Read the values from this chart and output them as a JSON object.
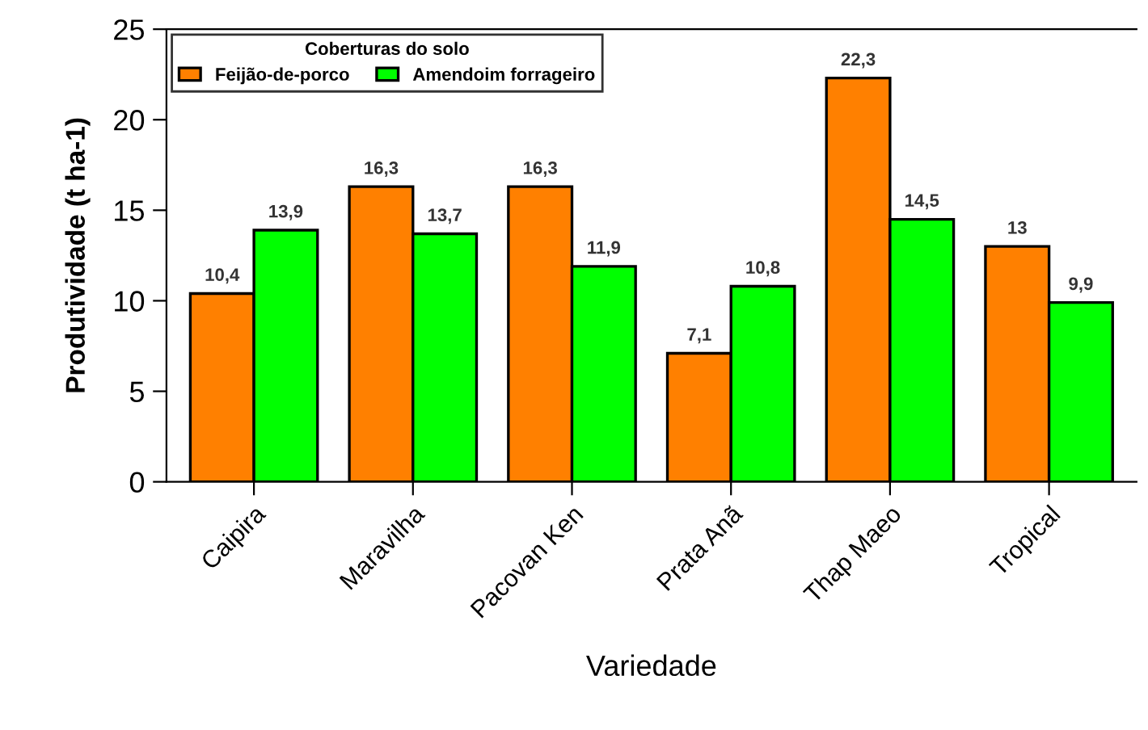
{
  "chart_data": {
    "type": "bar",
    "xlabel": "Variedade",
    "ylabel": "Produtividade (t ha-1)",
    "legend_title": "Coberturas do solo",
    "categories": [
      "Caipira",
      "Maravilha",
      "Pacovan Ken",
      "Prata Anã",
      "Thap Maeo",
      "Tropical"
    ],
    "series": [
      {
        "name": "Feijão-de-porco",
        "color": "#ff8000",
        "values": [
          10.4,
          16.3,
          16.3,
          7.1,
          22.3,
          13
        ],
        "value_labels": [
          "10,4",
          "16,3",
          "16,3",
          "7,1",
          "22,3",
          "13"
        ]
      },
      {
        "name": "Amendoim forrageiro",
        "color": "#00ff00",
        "values": [
          13.9,
          13.7,
          11.9,
          10.8,
          14.5,
          9.9
        ],
        "value_labels": [
          "13,9",
          "13,7",
          "11,9",
          "10,8",
          "14,5",
          "9,9"
        ]
      }
    ],
    "ylim": [
      0,
      25
    ],
    "yticks": [
      0,
      5,
      10,
      15,
      20,
      25
    ],
    "grid": false,
    "legend": "top left"
  }
}
